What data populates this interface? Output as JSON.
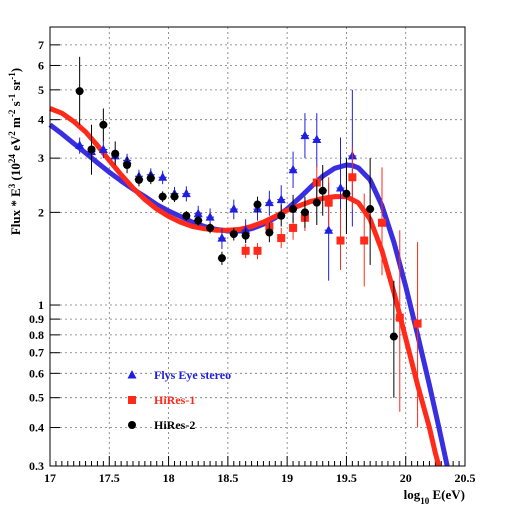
{
  "chart_data": {
    "type": "scatter",
    "xlabel": {
      "prefix": "log",
      "sub": "10",
      "suffix": " E(eV)"
    },
    "ylabel": {
      "parts": [
        "Flux * E",
        "3",
        " (10",
        "24",
        " eV",
        "2",
        " m",
        "-2",
        " s",
        "-1",
        " sr",
        "-1",
        ")"
      ]
    },
    "xlim": [
      17,
      20.5
    ],
    "ylim": [
      0.3,
      8
    ],
    "yscale": "log",
    "grid": true,
    "x_ticks": [
      17,
      17.5,
      18,
      18.5,
      19,
      19.5,
      20,
      20.5
    ],
    "x_tick_labels": [
      "17",
      "17.5",
      "18",
      "18.5",
      "19",
      "19.5",
      "20",
      "20.5"
    ],
    "y_ticks": [
      0.3,
      0.4,
      0.5,
      0.6,
      0.7,
      0.8,
      0.9,
      1,
      2,
      3,
      4,
      5,
      6,
      7
    ],
    "y_tick_labels": [
      "0.3",
      "0.4",
      "0.5",
      "0.6",
      "0.7",
      "0.8",
      "0.9",
      "1",
      "2",
      "3",
      "4",
      "5",
      "6",
      "7"
    ],
    "legend": {
      "position": "lower-left"
    },
    "series": [
      {
        "name": "Flys Eye stereo",
        "marker": "triangle",
        "color": "#1f1fe0",
        "points": [
          {
            "x": 17.25,
            "y": 3.3,
            "lo": 3.1,
            "hi": 3.5
          },
          {
            "x": 17.35,
            "y": 3.15,
            "lo": 2.95,
            "hi": 3.35
          },
          {
            "x": 17.45,
            "y": 3.2,
            "lo": 3.0,
            "hi": 3.4
          },
          {
            "x": 17.55,
            "y": 3.05,
            "lo": 2.9,
            "hi": 3.2
          },
          {
            "x": 17.65,
            "y": 2.95,
            "lo": 2.8,
            "hi": 3.1
          },
          {
            "x": 17.75,
            "y": 2.62,
            "lo": 2.5,
            "hi": 2.75
          },
          {
            "x": 17.85,
            "y": 2.65,
            "lo": 2.52,
            "hi": 2.78
          },
          {
            "x": 17.95,
            "y": 2.6,
            "lo": 2.47,
            "hi": 2.73
          },
          {
            "x": 18.05,
            "y": 2.3,
            "lo": 2.18,
            "hi": 2.42
          },
          {
            "x": 18.15,
            "y": 2.3,
            "lo": 2.17,
            "hi": 2.43
          },
          {
            "x": 18.25,
            "y": 1.98,
            "lo": 1.86,
            "hi": 2.1
          },
          {
            "x": 18.35,
            "y": 1.93,
            "lo": 1.8,
            "hi": 2.06
          },
          {
            "x": 18.45,
            "y": 1.65,
            "lo": 1.52,
            "hi": 1.78
          },
          {
            "x": 18.55,
            "y": 2.05,
            "lo": 1.9,
            "hi": 2.2
          },
          {
            "x": 18.65,
            "y": 1.75,
            "lo": 1.6,
            "hi": 1.9
          },
          {
            "x": 18.75,
            "y": 2.05,
            "lo": 1.88,
            "hi": 2.22
          },
          {
            "x": 18.85,
            "y": 2.15,
            "lo": 1.95,
            "hi": 2.35
          },
          {
            "x": 18.95,
            "y": 2.2,
            "lo": 1.95,
            "hi": 2.45
          },
          {
            "x": 19.05,
            "y": 2.75,
            "lo": 2.4,
            "hi": 3.15
          },
          {
            "x": 19.15,
            "y": 3.55,
            "lo": 3.0,
            "hi": 4.2
          },
          {
            "x": 19.25,
            "y": 3.45,
            "lo": 2.8,
            "hi": 4.2
          },
          {
            "x": 19.35,
            "y": 1.75,
            "lo": 1.2,
            "hi": 2.5
          },
          {
            "x": 19.45,
            "y": 2.4,
            "lo": 1.6,
            "hi": 3.5
          },
          {
            "x": 19.55,
            "y": 3.05,
            "lo": 1.8,
            "hi": 5.0
          }
        ]
      },
      {
        "name": "HiRes-1",
        "marker": "square",
        "color": "#ff2a1a",
        "points": [
          {
            "x": 18.65,
            "y": 1.5,
            "lo": 1.42,
            "hi": 1.58
          },
          {
            "x": 18.75,
            "y": 1.5,
            "lo": 1.41,
            "hi": 1.59
          },
          {
            "x": 18.85,
            "y": 1.8,
            "lo": 1.69,
            "hi": 1.91
          },
          {
            "x": 18.95,
            "y": 1.65,
            "lo": 1.53,
            "hi": 1.78
          },
          {
            "x": 19.05,
            "y": 1.78,
            "lo": 1.63,
            "hi": 1.95
          },
          {
            "x": 19.15,
            "y": 1.92,
            "lo": 1.74,
            "hi": 2.13
          },
          {
            "x": 19.25,
            "y": 2.5,
            "lo": 2.2,
            "hi": 2.85
          },
          {
            "x": 19.35,
            "y": 2.15,
            "lo": 1.8,
            "hi": 2.6
          },
          {
            "x": 19.45,
            "y": 1.62,
            "lo": 1.3,
            "hi": 2.05
          },
          {
            "x": 19.55,
            "y": 2.6,
            "lo": 2.05,
            "hi": 3.25
          },
          {
            "x": 19.65,
            "y": 1.62,
            "lo": 1.15,
            "hi": 2.3
          },
          {
            "x": 19.8,
            "y": 1.85,
            "lo": 1.25,
            "hi": 2.8
          },
          {
            "x": 19.95,
            "y": 0.91,
            "lo": 0.45,
            "hi": 1.75
          },
          {
            "x": 20.1,
            "y": 0.87,
            "lo": 0.4,
            "hi": 1.6
          }
        ]
      },
      {
        "name": "HiRes-2",
        "marker": "circle",
        "color": "#000000",
        "points": [
          {
            "x": 17.25,
            "y": 4.95,
            "lo": 3.85,
            "hi": 6.4
          },
          {
            "x": 17.35,
            "y": 3.2,
            "lo": 2.65,
            "hi": 3.85
          },
          {
            "x": 17.45,
            "y": 3.85,
            "lo": 3.4,
            "hi": 4.35
          },
          {
            "x": 17.55,
            "y": 3.1,
            "lo": 2.85,
            "hi": 3.4
          },
          {
            "x": 17.65,
            "y": 2.85,
            "lo": 2.68,
            "hi": 3.03
          },
          {
            "x": 17.75,
            "y": 2.55,
            "lo": 2.43,
            "hi": 2.68
          },
          {
            "x": 17.85,
            "y": 2.58,
            "lo": 2.47,
            "hi": 2.7
          },
          {
            "x": 17.95,
            "y": 2.25,
            "lo": 2.16,
            "hi": 2.34
          },
          {
            "x": 18.05,
            "y": 2.25,
            "lo": 2.16,
            "hi": 2.34
          },
          {
            "x": 18.15,
            "y": 1.95,
            "lo": 1.88,
            "hi": 2.02
          },
          {
            "x": 18.25,
            "y": 1.88,
            "lo": 1.81,
            "hi": 1.95
          },
          {
            "x": 18.35,
            "y": 1.78,
            "lo": 1.71,
            "hi": 1.85
          },
          {
            "x": 18.45,
            "y": 1.42,
            "lo": 1.35,
            "hi": 1.49
          },
          {
            "x": 18.55,
            "y": 1.7,
            "lo": 1.62,
            "hi": 1.78
          },
          {
            "x": 18.65,
            "y": 1.68,
            "lo": 1.59,
            "hi": 1.77
          },
          {
            "x": 18.75,
            "y": 2.12,
            "lo": 2.0,
            "hi": 2.25
          },
          {
            "x": 18.85,
            "y": 1.72,
            "lo": 1.6,
            "hi": 1.85
          },
          {
            "x": 18.95,
            "y": 1.95,
            "lo": 1.8,
            "hi": 2.12
          },
          {
            "x": 19.05,
            "y": 2.05,
            "lo": 1.85,
            "hi": 2.28
          },
          {
            "x": 19.15,
            "y": 2.0,
            "lo": 1.78,
            "hi": 2.25
          },
          {
            "x": 19.25,
            "y": 2.15,
            "lo": 1.82,
            "hi": 2.55
          },
          {
            "x": 19.3,
            "y": 2.35,
            "lo": 1.95,
            "hi": 2.85
          },
          {
            "x": 19.5,
            "y": 2.3,
            "lo": 1.7,
            "hi": 3.0
          },
          {
            "x": 19.7,
            "y": 2.05,
            "lo": 1.35,
            "hi": 3.0
          },
          {
            "x": 19.9,
            "y": 0.79,
            "lo": 0.5,
            "hi": 1.2
          }
        ]
      }
    ],
    "curves": [
      {
        "color": "#3a2fe0",
        "points": [
          [
            17,
            3.85
          ],
          [
            17.1,
            3.6
          ],
          [
            17.2,
            3.35
          ],
          [
            17.3,
            3.12
          ],
          [
            17.4,
            2.9
          ],
          [
            17.5,
            2.7
          ],
          [
            17.6,
            2.53
          ],
          [
            17.7,
            2.38
          ],
          [
            17.8,
            2.25
          ],
          [
            17.9,
            2.12
          ],
          [
            18.0,
            2.02
          ],
          [
            18.1,
            1.94
          ],
          [
            18.2,
            1.86
          ],
          [
            18.3,
            1.8
          ],
          [
            18.4,
            1.76
          ],
          [
            18.5,
            1.74
          ],
          [
            18.6,
            1.74
          ],
          [
            18.7,
            1.77
          ],
          [
            18.8,
            1.83
          ],
          [
            18.9,
            1.92
          ],
          [
            19.0,
            2.05
          ],
          [
            19.1,
            2.22
          ],
          [
            19.2,
            2.42
          ],
          [
            19.3,
            2.62
          ],
          [
            19.4,
            2.78
          ],
          [
            19.5,
            2.85
          ],
          [
            19.55,
            2.84
          ],
          [
            19.6,
            2.79
          ],
          [
            19.7,
            2.55
          ],
          [
            19.8,
            2.1
          ],
          [
            19.9,
            1.6
          ],
          [
            20.0,
            1.15
          ],
          [
            20.1,
            0.8
          ],
          [
            20.2,
            0.55
          ],
          [
            20.28,
            0.4
          ],
          [
            20.35,
            0.3
          ]
        ]
      },
      {
        "color": "#ff2a1a",
        "points": [
          [
            17,
            4.35
          ],
          [
            17.1,
            4.2
          ],
          [
            17.2,
            3.95
          ],
          [
            17.3,
            3.65
          ],
          [
            17.4,
            3.3
          ],
          [
            17.5,
            2.95
          ],
          [
            17.6,
            2.65
          ],
          [
            17.7,
            2.4
          ],
          [
            17.8,
            2.2
          ],
          [
            17.9,
            2.05
          ],
          [
            18.0,
            1.94
          ],
          [
            18.1,
            1.86
          ],
          [
            18.2,
            1.8
          ],
          [
            18.3,
            1.77
          ],
          [
            18.4,
            1.75
          ],
          [
            18.5,
            1.75
          ],
          [
            18.6,
            1.76
          ],
          [
            18.7,
            1.8
          ],
          [
            18.8,
            1.86
          ],
          [
            18.9,
            1.94
          ],
          [
            19.0,
            2.03
          ],
          [
            19.1,
            2.1
          ],
          [
            19.2,
            2.17
          ],
          [
            19.3,
            2.22
          ],
          [
            19.4,
            2.25
          ],
          [
            19.5,
            2.25
          ],
          [
            19.6,
            2.15
          ],
          [
            19.7,
            1.9
          ],
          [
            19.8,
            1.5
          ],
          [
            19.9,
            1.1
          ],
          [
            20.0,
            0.78
          ],
          [
            20.1,
            0.55
          ],
          [
            20.2,
            0.4
          ],
          [
            20.25,
            0.33
          ],
          [
            20.28,
            0.3
          ]
        ]
      }
    ]
  }
}
